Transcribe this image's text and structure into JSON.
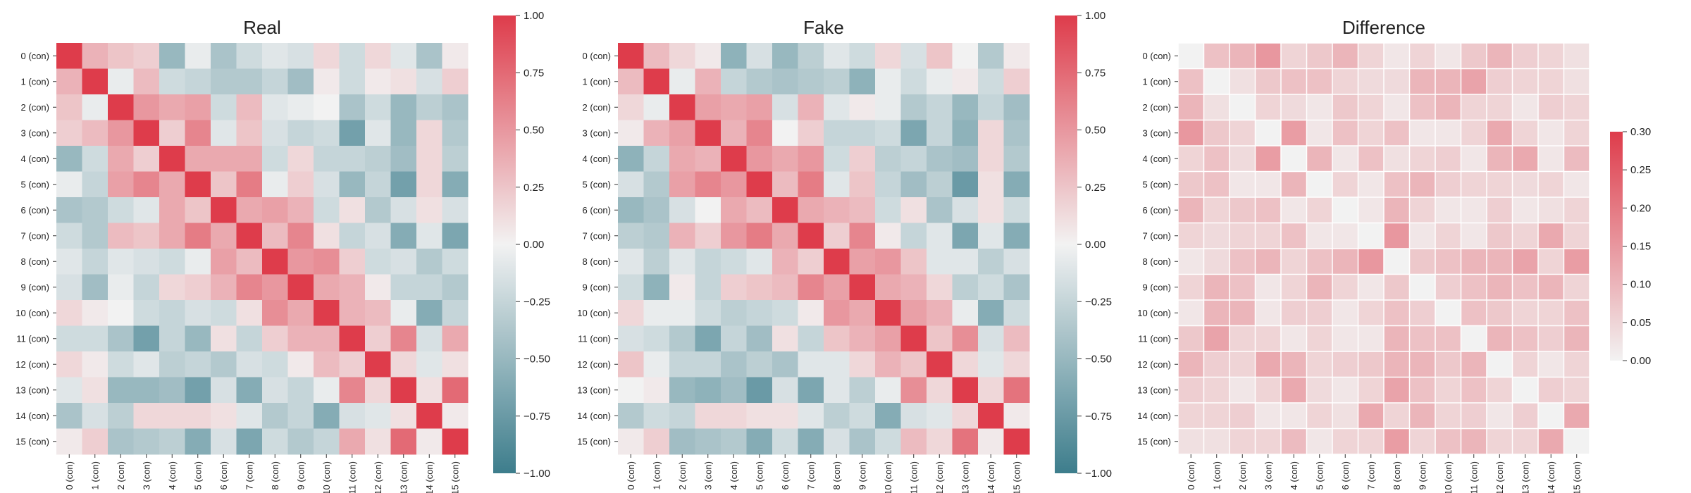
{
  "chart_data": [
    {
      "type": "heatmap",
      "title": "Real",
      "labels": [
        "0 (con)",
        "1 (con)",
        "2 (con)",
        "3 (con)",
        "4 (con)",
        "5 (con)",
        "6 (con)",
        "7 (con)",
        "8 (con)",
        "9 (con)",
        "10 (con)",
        "11 (con)",
        "12 (con)",
        "13 (con)",
        "14 (con)",
        "15 (con)"
      ],
      "colorbar": {
        "min": -1.0,
        "max": 1.0,
        "ticks": [
          "1.00",
          "0.75",
          "0.50",
          "0.25",
          "0.00",
          "−0.25",
          "−0.50",
          "−0.75",
          "−1.00"
        ],
        "tick_values": [
          1.0,
          0.75,
          0.5,
          0.25,
          0.0,
          -0.25,
          -0.5,
          -0.75,
          -1.0
        ]
      },
      "colormap": {
        "low": "#3d7d8c",
        "mid": "#f2f2f2",
        "high": "#de3c4b"
      },
      "values": [
        [
          1.0,
          0.35,
          0.25,
          0.2,
          -0.5,
          -0.05,
          -0.4,
          -0.2,
          -0.1,
          -0.15,
          0.15,
          -0.2,
          0.15,
          -0.1,
          -0.4,
          0.05
        ],
        [
          0.35,
          1.0,
          -0.05,
          0.3,
          -0.2,
          -0.25,
          -0.35,
          -0.35,
          -0.25,
          -0.45,
          0.05,
          -0.2,
          0.05,
          0.1,
          -0.15,
          0.2
        ],
        [
          0.25,
          -0.05,
          1.0,
          0.5,
          0.4,
          0.45,
          -0.2,
          0.3,
          -0.1,
          -0.05,
          0.0,
          -0.4,
          -0.2,
          -0.5,
          -0.3,
          -0.4
        ],
        [
          0.2,
          0.3,
          0.5,
          1.0,
          0.2,
          0.6,
          -0.1,
          0.25,
          -0.15,
          -0.25,
          -0.2,
          -0.7,
          -0.1,
          -0.5,
          0.15,
          -0.35
        ],
        [
          -0.5,
          -0.2,
          0.4,
          0.2,
          1.0,
          0.4,
          0.4,
          0.4,
          -0.2,
          0.15,
          -0.25,
          -0.25,
          -0.3,
          -0.45,
          0.15,
          -0.3
        ],
        [
          -0.05,
          -0.25,
          0.45,
          0.6,
          0.4,
          1.0,
          0.25,
          0.65,
          -0.05,
          0.2,
          -0.15,
          -0.5,
          -0.25,
          -0.7,
          0.15,
          -0.6
        ],
        [
          -0.4,
          -0.35,
          -0.2,
          -0.1,
          0.4,
          0.25,
          1.0,
          0.4,
          0.45,
          0.35,
          -0.2,
          0.1,
          -0.35,
          -0.15,
          0.1,
          -0.15
        ],
        [
          -0.2,
          -0.35,
          0.3,
          0.25,
          0.4,
          0.65,
          0.4,
          1.0,
          0.3,
          0.6,
          0.1,
          -0.25,
          -0.15,
          -0.6,
          -0.1,
          -0.65
        ],
        [
          -0.1,
          -0.25,
          -0.1,
          -0.15,
          -0.2,
          -0.05,
          0.45,
          0.3,
          1.0,
          0.5,
          0.55,
          0.2,
          -0.2,
          -0.15,
          -0.35,
          -0.2
        ],
        [
          -0.15,
          -0.45,
          -0.05,
          -0.25,
          0.15,
          0.2,
          0.35,
          0.6,
          0.5,
          1.0,
          0.4,
          0.35,
          0.05,
          -0.25,
          -0.25,
          -0.35
        ],
        [
          0.15,
          0.05,
          0.0,
          -0.2,
          -0.25,
          -0.15,
          -0.2,
          0.1,
          0.55,
          0.4,
          1.0,
          0.35,
          0.3,
          -0.05,
          -0.6,
          -0.25
        ],
        [
          -0.2,
          -0.2,
          -0.4,
          -0.7,
          -0.25,
          -0.5,
          0.1,
          -0.25,
          0.2,
          0.35,
          0.35,
          1.0,
          0.2,
          0.6,
          -0.15,
          0.4
        ],
        [
          0.15,
          0.05,
          -0.2,
          -0.1,
          -0.3,
          -0.25,
          -0.35,
          -0.15,
          -0.2,
          0.05,
          0.3,
          0.2,
          1.0,
          0.15,
          -0.1,
          0.1
        ],
        [
          -0.1,
          0.1,
          -0.5,
          -0.5,
          -0.45,
          -0.7,
          -0.15,
          -0.6,
          -0.15,
          -0.25,
          -0.05,
          0.6,
          0.15,
          1.0,
          0.1,
          0.75
        ],
        [
          -0.4,
          -0.15,
          -0.3,
          0.15,
          0.15,
          0.15,
          0.1,
          -0.1,
          -0.35,
          -0.25,
          -0.6,
          -0.15,
          -0.1,
          0.1,
          1.0,
          0.05
        ],
        [
          0.05,
          0.2,
          -0.4,
          -0.35,
          -0.3,
          -0.6,
          -0.15,
          -0.65,
          -0.2,
          -0.35,
          -0.25,
          0.4,
          0.1,
          0.75,
          0.05,
          1.0
        ]
      ]
    },
    {
      "type": "heatmap",
      "title": "Fake",
      "labels": [
        "0 (con)",
        "1 (con)",
        "2 (con)",
        "3 (con)",
        "4 (con)",
        "5 (con)",
        "6 (con)",
        "7 (con)",
        "8 (con)",
        "9 (con)",
        "10 (con)",
        "11 (con)",
        "12 (con)",
        "13 (con)",
        "14 (con)",
        "15 (con)"
      ],
      "colorbar": {
        "min": -1.0,
        "max": 1.0,
        "ticks": [
          "1.00",
          "0.75",
          "0.50",
          "0.25",
          "0.00",
          "−0.25",
          "−0.50",
          "−0.75",
          "−1.00"
        ],
        "tick_values": [
          1.0,
          0.75,
          0.5,
          0.25,
          0.0,
          -0.25,
          -0.5,
          -0.75,
          -1.0
        ]
      },
      "colormap": {
        "low": "#3d7d8c",
        "mid": "#f2f2f2",
        "high": "#de3c4b"
      },
      "values": [
        [
          1.0,
          0.3,
          0.15,
          0.05,
          -0.55,
          -0.15,
          -0.5,
          -0.3,
          -0.1,
          -0.2,
          0.15,
          -0.15,
          0.25,
          0.0,
          -0.35,
          0.05
        ],
        [
          0.3,
          1.0,
          -0.05,
          0.35,
          -0.25,
          -0.35,
          -0.4,
          -0.35,
          -0.3,
          -0.55,
          -0.05,
          -0.2,
          -0.05,
          0.05,
          -0.2,
          0.2
        ],
        [
          0.15,
          -0.05,
          1.0,
          0.45,
          0.4,
          0.45,
          -0.15,
          0.35,
          -0.1,
          0.05,
          -0.05,
          -0.35,
          -0.25,
          -0.5,
          -0.25,
          -0.45
        ],
        [
          0.05,
          0.35,
          0.45,
          1.0,
          0.35,
          0.6,
          0.0,
          0.2,
          -0.25,
          -0.25,
          -0.2,
          -0.65,
          -0.25,
          -0.55,
          0.15,
          -0.4
        ],
        [
          -0.55,
          -0.25,
          0.4,
          0.35,
          1.0,
          0.5,
          0.4,
          0.5,
          -0.2,
          0.2,
          -0.3,
          -0.25,
          -0.4,
          -0.45,
          0.15,
          -0.35
        ],
        [
          -0.15,
          -0.35,
          0.45,
          0.6,
          0.5,
          1.0,
          0.3,
          0.65,
          -0.1,
          0.25,
          -0.25,
          -0.45,
          -0.3,
          -0.75,
          0.1,
          -0.6
        ],
        [
          -0.5,
          -0.4,
          -0.15,
          0.0,
          0.4,
          0.3,
          1.0,
          0.4,
          0.35,
          0.3,
          -0.2,
          0.1,
          -0.4,
          -0.15,
          0.1,
          -0.2
        ],
        [
          -0.3,
          -0.35,
          0.35,
          0.2,
          0.5,
          0.65,
          0.4,
          1.0,
          0.2,
          0.6,
          0.05,
          -0.25,
          -0.1,
          -0.65,
          -0.1,
          -0.6
        ],
        [
          -0.1,
          -0.3,
          -0.1,
          -0.25,
          -0.2,
          -0.1,
          0.35,
          0.2,
          1.0,
          0.45,
          0.5,
          0.25,
          -0.1,
          -0.1,
          -0.3,
          -0.15
        ],
        [
          -0.2,
          -0.55,
          0.05,
          -0.25,
          0.2,
          0.25,
          0.3,
          0.6,
          0.45,
          1.0,
          0.4,
          0.35,
          0.15,
          -0.3,
          -0.2,
          -0.4
        ],
        [
          0.15,
          -0.05,
          -0.05,
          -0.2,
          -0.3,
          -0.25,
          -0.2,
          0.05,
          0.5,
          0.4,
          1.0,
          0.45,
          0.35,
          -0.05,
          -0.6,
          -0.2
        ],
        [
          -0.15,
          -0.2,
          -0.35,
          -0.65,
          -0.25,
          -0.45,
          0.1,
          -0.25,
          0.25,
          0.35,
          0.45,
          1.0,
          0.25,
          0.55,
          -0.15,
          0.3
        ],
        [
          0.25,
          -0.05,
          -0.25,
          -0.25,
          -0.4,
          -0.3,
          -0.4,
          -0.1,
          -0.1,
          0.15,
          0.35,
          0.25,
          1.0,
          0.15,
          -0.1,
          0.15
        ],
        [
          0.0,
          0.05,
          -0.5,
          -0.55,
          -0.45,
          -0.75,
          -0.15,
          -0.65,
          -0.1,
          -0.3,
          -0.05,
          0.55,
          0.15,
          1.0,
          0.15,
          0.7
        ],
        [
          -0.35,
          -0.2,
          -0.25,
          0.15,
          0.15,
          0.1,
          0.1,
          -0.1,
          -0.3,
          -0.2,
          -0.6,
          -0.15,
          -0.1,
          0.15,
          1.0,
          0.05
        ],
        [
          0.05,
          0.2,
          -0.45,
          -0.4,
          -0.35,
          -0.6,
          -0.2,
          -0.6,
          -0.15,
          -0.4,
          -0.2,
          0.3,
          0.15,
          0.7,
          0.05,
          1.0
        ]
      ]
    },
    {
      "type": "heatmap",
      "title": "Difference",
      "labels": [
        "0 (con)",
        "1 (con)",
        "2 (con)",
        "3 (con)",
        "4 (con)",
        "5 (con)",
        "6 (con)",
        "7 (con)",
        "8 (con)",
        "9 (con)",
        "10 (con)",
        "11 (con)",
        "12 (con)",
        "13 (con)",
        "14 (con)",
        "15 (con)"
      ],
      "colorbar": {
        "min": 0.0,
        "max": 0.3,
        "ticks": [
          "0.30",
          "0.25",
          "0.20",
          "0.15",
          "0.10",
          "0.05",
          "0.00"
        ],
        "tick_values": [
          0.3,
          0.25,
          0.2,
          0.15,
          0.1,
          0.05,
          0.0
        ]
      },
      "colormap": {
        "low": "#f2f2f2",
        "high": "#de3c4b"
      },
      "values": [
        [
          0.0,
          0.08,
          0.1,
          0.15,
          0.05,
          0.07,
          0.1,
          0.05,
          0.02,
          0.05,
          0.02,
          0.07,
          0.1,
          0.06,
          0.05,
          0.03
        ],
        [
          0.08,
          0.0,
          0.03,
          0.07,
          0.08,
          0.08,
          0.05,
          0.04,
          0.04,
          0.1,
          0.1,
          0.13,
          0.06,
          0.05,
          0.05,
          0.03
        ],
        [
          0.1,
          0.03,
          0.0,
          0.05,
          0.04,
          0.02,
          0.07,
          0.05,
          0.02,
          0.08,
          0.1,
          0.05,
          0.05,
          0.02,
          0.06,
          0.05
        ],
        [
          0.15,
          0.07,
          0.05,
          0.0,
          0.14,
          0.02,
          0.08,
          0.05,
          0.08,
          0.02,
          0.02,
          0.05,
          0.12,
          0.05,
          0.02,
          0.05
        ],
        [
          0.05,
          0.08,
          0.04,
          0.14,
          0.0,
          0.1,
          0.02,
          0.08,
          0.03,
          0.05,
          0.06,
          0.02,
          0.1,
          0.12,
          0.02,
          0.09
        ],
        [
          0.07,
          0.08,
          0.02,
          0.02,
          0.1,
          0.0,
          0.05,
          0.02,
          0.08,
          0.1,
          0.06,
          0.05,
          0.05,
          0.04,
          0.05,
          0.02
        ],
        [
          0.1,
          0.05,
          0.07,
          0.08,
          0.02,
          0.05,
          0.0,
          0.02,
          0.1,
          0.05,
          0.02,
          0.02,
          0.06,
          0.02,
          0.03,
          0.05
        ],
        [
          0.05,
          0.04,
          0.05,
          0.05,
          0.08,
          0.02,
          0.02,
          0.0,
          0.15,
          0.02,
          0.05,
          0.02,
          0.07,
          0.05,
          0.12,
          0.05
        ],
        [
          0.02,
          0.04,
          0.08,
          0.1,
          0.05,
          0.08,
          0.1,
          0.15,
          0.0,
          0.07,
          0.08,
          0.1,
          0.1,
          0.13,
          0.05,
          0.14
        ],
        [
          0.05,
          0.1,
          0.08,
          0.02,
          0.05,
          0.1,
          0.05,
          0.02,
          0.07,
          0.0,
          0.06,
          0.08,
          0.1,
          0.08,
          0.1,
          0.05
        ],
        [
          0.02,
          0.1,
          0.1,
          0.02,
          0.06,
          0.06,
          0.02,
          0.05,
          0.08,
          0.06,
          0.0,
          0.08,
          0.07,
          0.05,
          0.05,
          0.08
        ],
        [
          0.07,
          0.13,
          0.05,
          0.05,
          0.02,
          0.05,
          0.02,
          0.02,
          0.1,
          0.08,
          0.08,
          0.0,
          0.1,
          0.08,
          0.06,
          0.1
        ],
        [
          0.1,
          0.06,
          0.05,
          0.12,
          0.1,
          0.05,
          0.06,
          0.07,
          0.1,
          0.1,
          0.07,
          0.1,
          0.0,
          0.05,
          0.02,
          0.05
        ],
        [
          0.06,
          0.05,
          0.02,
          0.05,
          0.12,
          0.04,
          0.02,
          0.05,
          0.13,
          0.08,
          0.05,
          0.08,
          0.05,
          0.0,
          0.06,
          0.05
        ],
        [
          0.05,
          0.05,
          0.06,
          0.02,
          0.02,
          0.05,
          0.03,
          0.12,
          0.05,
          0.1,
          0.05,
          0.06,
          0.02,
          0.06,
          0.0,
          0.12
        ],
        [
          0.03,
          0.03,
          0.05,
          0.05,
          0.09,
          0.02,
          0.05,
          0.05,
          0.14,
          0.05,
          0.08,
          0.1,
          0.05,
          0.05,
          0.12,
          0.0
        ]
      ]
    }
  ]
}
